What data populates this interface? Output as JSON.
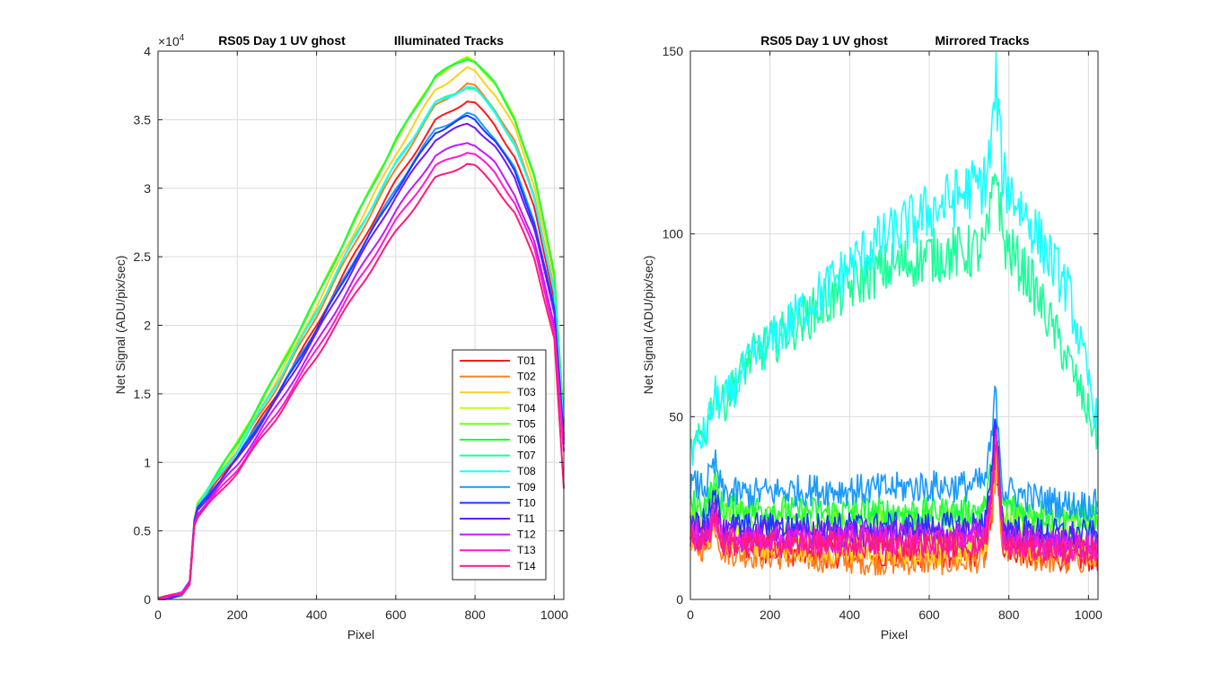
{
  "chart_data": [
    {
      "type": "line",
      "title": "RS05 Day 1  UV ghost",
      "subtitle": "Illuminated Tracks",
      "xlabel": "Pixel",
      "ylabel": "Net Signal (ADU/pix/sec)",
      "xlim": [
        0,
        1024
      ],
      "ylim": [
        0,
        40000
      ],
      "y_exponent_label": "×10",
      "y_exponent_power": "4",
      "xticks": [
        0,
        200,
        400,
        600,
        800,
        1000
      ],
      "xtick_labels": [
        "0",
        "200",
        "400",
        "600",
        "800",
        "1000"
      ],
      "yticks": [
        0,
        5000,
        10000,
        15000,
        20000,
        25000,
        30000,
        35000,
        40000
      ],
      "ytick_labels": [
        "0",
        "0.5",
        "1",
        "1.5",
        "2",
        "2.5",
        "3",
        "3.5",
        "4"
      ],
      "grid": true,
      "legend_position": "bottom-right",
      "x": [
        0,
        60,
        80,
        92,
        100,
        150,
        200,
        300,
        400,
        500,
        600,
        700,
        780,
        800,
        850,
        900,
        950,
        1000,
        1024
      ],
      "series": [
        {
          "name": "T01",
          "color": "#ff1a1a",
          "values": [
            0,
            400,
            1200,
            5800,
            6700,
            8600,
            10500,
            15000,
            20000,
            25400,
            30500,
            34900,
            36400,
            36200,
            34600,
            32300,
            28500,
            22000,
            12000
          ]
        },
        {
          "name": "T02",
          "color": "#ff7f1a",
          "values": [
            0,
            400,
            1200,
            5800,
            6800,
            8800,
            10800,
            15500,
            20700,
            26200,
            31400,
            36000,
            37600,
            37400,
            35800,
            33400,
            29400,
            22700,
            12500
          ]
        },
        {
          "name": "T03",
          "color": "#ffd21a",
          "values": [
            0,
            400,
            1200,
            5800,
            6900,
            9000,
            11100,
            16000,
            21400,
            27100,
            32500,
            37200,
            38700,
            38500,
            36900,
            34400,
            30200,
            23300,
            12800
          ]
        },
        {
          "name": "T04",
          "color": "#bfff1a",
          "values": [
            0,
            400,
            1200,
            5800,
            7000,
            9200,
            11400,
            16500,
            22000,
            27900,
            33500,
            38200,
            39500,
            39300,
            37600,
            35100,
            30800,
            23800,
            13000
          ]
        },
        {
          "name": "T05",
          "color": "#6aff1a",
          "values": [
            0,
            400,
            1200,
            5800,
            7000,
            9200,
            11400,
            16500,
            22000,
            27900,
            33500,
            38200,
            39500,
            39300,
            37600,
            35100,
            30800,
            23800,
            13000
          ]
        },
        {
          "name": "T06",
          "color": "#1aff3a",
          "values": [
            0,
            400,
            1200,
            5800,
            7000,
            9200,
            11400,
            16500,
            22000,
            27900,
            33500,
            38200,
            39500,
            39300,
            37600,
            35100,
            30800,
            23800,
            13000
          ]
        },
        {
          "name": "T07",
          "color": "#1aff9a",
          "values": [
            0,
            400,
            1200,
            5800,
            6800,
            8900,
            10900,
            15800,
            21000,
            26600,
            31800,
            36200,
            37400,
            37200,
            35600,
            33200,
            29200,
            22500,
            12400
          ]
        },
        {
          "name": "T08",
          "color": "#1affff",
          "values": [
            0,
            400,
            1200,
            5800,
            6800,
            8900,
            10900,
            15800,
            21000,
            26600,
            31800,
            36200,
            37400,
            37200,
            35600,
            33200,
            29200,
            22500,
            12400
          ]
        },
        {
          "name": "T09",
          "color": "#1a9aff",
          "values": [
            0,
            400,
            1200,
            5700,
            6600,
            8500,
            10400,
            14900,
            19800,
            25000,
            30000,
            34300,
            35400,
            35200,
            33700,
            31400,
            27600,
            21300,
            11700
          ]
        },
        {
          "name": "T10",
          "color": "#1a3aff",
          "values": [
            0,
            400,
            1200,
            5700,
            6600,
            8500,
            10300,
            14800,
            19700,
            24900,
            29800,
            34100,
            35200,
            35000,
            33500,
            31200,
            27400,
            21100,
            11600
          ]
        },
        {
          "name": "T11",
          "color": "#6a1aff",
          "values": [
            0,
            400,
            1200,
            5700,
            6500,
            8400,
            10200,
            14600,
            19400,
            24500,
            29400,
            33600,
            34700,
            34500,
            33000,
            30800,
            27000,
            20800,
            11400
          ]
        },
        {
          "name": "T12",
          "color": "#bf1aff",
          "values": [
            0,
            400,
            1200,
            5600,
            6300,
            8100,
            9800,
            14100,
            18700,
            23600,
            28300,
            32400,
            33400,
            33200,
            31800,
            29600,
            26000,
            20000,
            11000
          ]
        },
        {
          "name": "T13",
          "color": "#ff1ad2",
          "values": [
            0,
            400,
            1200,
            5500,
            6100,
            7800,
            9500,
            13600,
            18200,
            23000,
            27600,
            31600,
            32700,
            32500,
            31100,
            29000,
            25500,
            19600,
            10800
          ]
        },
        {
          "name": "T14",
          "color": "#ff1a7f",
          "values": [
            0,
            400,
            1200,
            5500,
            6000,
            7600,
            9300,
            13300,
            17700,
            22400,
            26800,
            30700,
            31800,
            31600,
            30200,
            28200,
            24800,
            19100,
            8000
          ]
        }
      ]
    },
    {
      "type": "line",
      "title": "RS05 Day 1  UV ghost",
      "subtitle": "Mirrored Tracks",
      "xlabel": "Pixel",
      "ylabel": "Net Signal (ADU/pix/sec)",
      "xlim": [
        0,
        1024
      ],
      "ylim": [
        0,
        150
      ],
      "xticks": [
        0,
        200,
        400,
        600,
        800,
        1000
      ],
      "xtick_labels": [
        "0",
        "200",
        "400",
        "600",
        "800",
        "1000"
      ],
      "yticks": [
        0,
        50,
        100,
        150
      ],
      "ytick_labels": [
        "0",
        "50",
        "100",
        "150"
      ],
      "grid": true,
      "x": [
        0,
        40,
        62,
        80,
        150,
        300,
        450,
        600,
        700,
        740,
        755,
        768,
        785,
        850,
        950,
        1024
      ],
      "series": [
        {
          "name": "T01",
          "color": "#ff1a1a",
          "values": [
            16,
            16,
            23,
            15,
            14,
            12,
            12,
            12,
            12,
            13,
            22,
            38,
            15,
            12,
            11,
            11
          ]
        },
        {
          "name": "T02",
          "color": "#ff7f1a",
          "values": [
            14,
            14,
            21,
            13,
            12,
            11,
            10,
            10,
            10,
            11,
            20,
            36,
            13,
            11,
            10,
            11
          ]
        },
        {
          "name": "T03",
          "color": "#ffd21a",
          "values": [
            17,
            17,
            24,
            16,
            15,
            14,
            13,
            13,
            13,
            14,
            24,
            40,
            16,
            14,
            13,
            13
          ]
        },
        {
          "name": "T04",
          "color": "#bfff1a",
          "values": [
            20,
            20,
            26,
            19,
            18,
            17,
            17,
            17,
            17,
            18,
            27,
            42,
            19,
            17,
            16,
            16
          ]
        },
        {
          "name": "T05",
          "color": "#6aff1a",
          "values": [
            24,
            24,
            30,
            23,
            23,
            22,
            22,
            22,
            22,
            23,
            32,
            46,
            24,
            22,
            21,
            21
          ]
        },
        {
          "name": "T06",
          "color": "#1aff3a",
          "values": [
            26,
            26,
            32,
            25,
            25,
            24,
            24,
            24,
            24,
            25,
            34,
            48,
            26,
            24,
            23,
            23
          ]
        },
        {
          "name": "T07",
          "color": "#1aff9a",
          "values": [
            40,
            46,
            58,
            53,
            66,
            78,
            89,
            94,
            95,
            96,
            105,
            120,
            98,
            88,
            65,
            44
          ]
        },
        {
          "name": "T08",
          "color": "#1affff",
          "values": [
            40,
            46,
            56,
            53,
            65,
            81,
            96,
            106,
            112,
            114,
            123,
            141,
            115,
            104,
            84,
            48
          ]
        },
        {
          "name": "T09",
          "color": "#1a9aff",
          "values": [
            31,
            31,
            37,
            29,
            29,
            30,
            30,
            31,
            31,
            32,
            42,
            57,
            30,
            28,
            26,
            26
          ]
        },
        {
          "name": "T10",
          "color": "#1a3aff",
          "values": [
            21,
            21,
            28,
            20,
            20,
            20,
            20,
            20,
            20,
            21,
            31,
            50,
            20,
            19,
            18,
            18
          ]
        },
        {
          "name": "T11",
          "color": "#6a1aff",
          "values": [
            19,
            19,
            26,
            18,
            18,
            18,
            18,
            18,
            18,
            19,
            29,
            48,
            18,
            17,
            16,
            16
          ]
        },
        {
          "name": "T12",
          "color": "#bf1aff",
          "values": [
            18,
            18,
            25,
            17,
            17,
            17,
            17,
            17,
            17,
            18,
            27,
            45,
            17,
            16,
            15,
            15
          ]
        },
        {
          "name": "T13",
          "color": "#ff1ad2",
          "values": [
            17,
            17,
            24,
            16,
            16,
            16,
            16,
            16,
            16,
            17,
            26,
            44,
            16,
            15,
            14,
            14
          ]
        },
        {
          "name": "T14",
          "color": "#ff1a7f",
          "values": [
            16,
            16,
            24,
            15,
            15,
            15,
            15,
            15,
            15,
            16,
            25,
            42,
            15,
            14,
            13,
            13
          ]
        }
      ]
    }
  ]
}
